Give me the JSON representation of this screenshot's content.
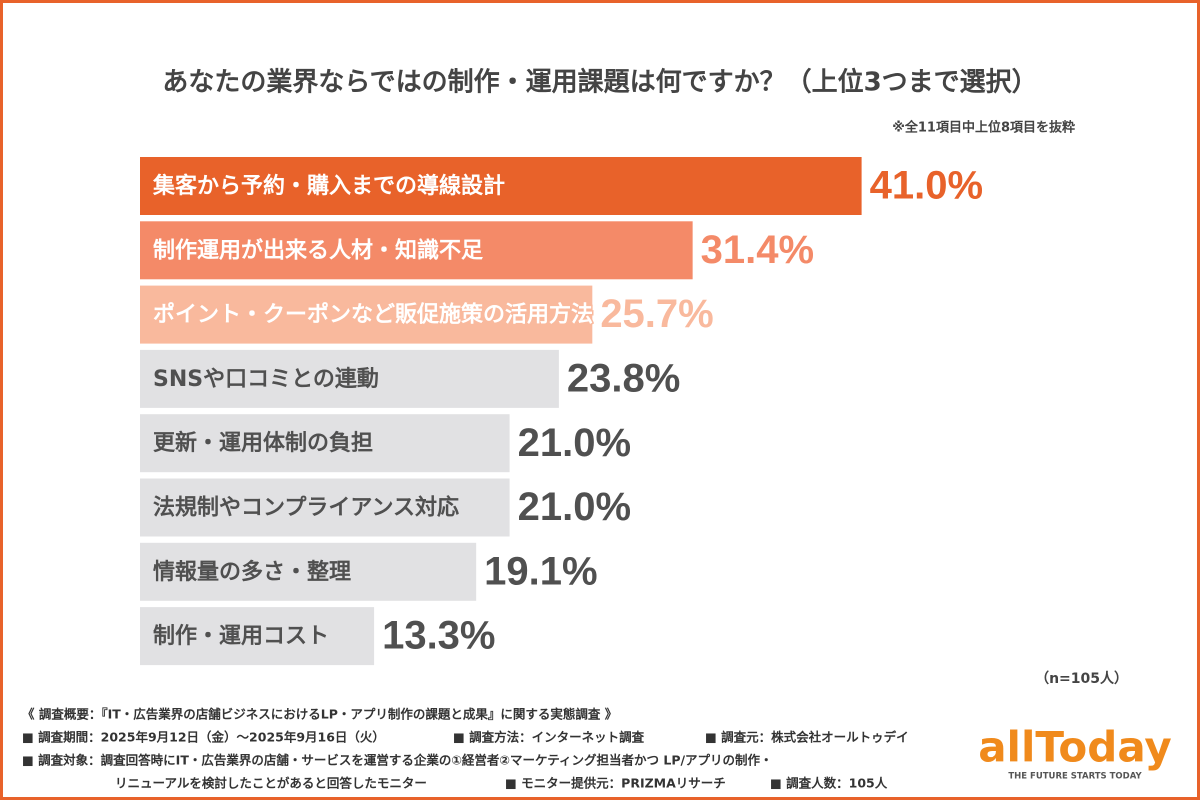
{
  "chart_data": {
    "type": "bar",
    "title": "あなたの業界ならではの制作・運用課題は何ですか？（上位3つまで選択）",
    "note": "※全11項目中上位8項目を抜粋",
    "sample_size": "（n=105人）",
    "categories": [
      "集客から予約・購入までの導線設計",
      "制作運用が出来る人材・知識不足",
      "ポイント・クーポンなど販促施策の活用方法",
      "SNSや口コミとの連動",
      "更新・運用体制の負担",
      "法規制やコンプライアンス対応",
      "情報量の多さ・整理",
      "制作・運用コスト"
    ],
    "values": [
      41.0,
      31.4,
      25.7,
      23.8,
      21.0,
      21.0,
      19.1,
      13.3
    ],
    "value_labels": [
      "41.0%",
      "31.4%",
      "25.7%",
      "23.8%",
      "21.0%",
      "21.0%",
      "19.1%",
      "13.3%"
    ],
    "colors": [
      "#e8622a",
      "#f48a68",
      "#f9b99d",
      "#e1e1e3",
      "#e1e1e3",
      "#e1e1e3",
      "#e1e1e3",
      "#e1e1e3"
    ],
    "label_colors": [
      "#e8622a",
      "#f48a68",
      "#f9b99d",
      "#505050",
      "#505050",
      "#505050",
      "#505050",
      "#505050"
    ]
  },
  "footer": {
    "heading": "《 調査概要：『IT・広告業界の店舗ビジネスにおけるLP・アプリ制作の課題と成果』に関する実態調査 》",
    "period": "■ 調査期間：2025年9月12日（金）〜2025年9月16日（火）",
    "method": "■ 調査方法：インターネット調査",
    "source": "■ 調査元：株式会社オールトゥデイ",
    "target_1": "■ 調査対象：調査回答時にIT・広告業界の店舗・サービスを運営する企業の①経営者②マーケティング担当者かつ LP/アプリの制作・",
    "target_2": "リニューアルを検討したことがあると回答したモニター",
    "provider": "■ モニター提供元：PRIZMAリサーチ",
    "count": "■ 調査人数：105人"
  },
  "logo": {
    "name": "allToday",
    "tagline": "THE FUTURE STARTS TODAY"
  }
}
